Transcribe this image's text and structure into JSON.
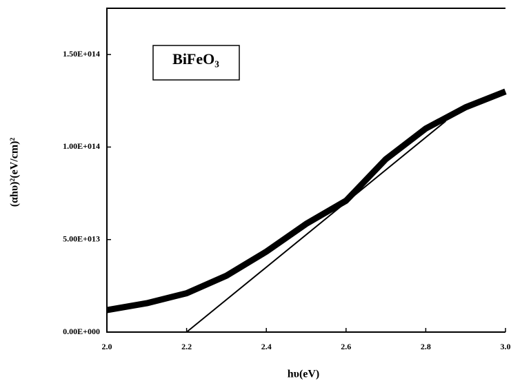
{
  "chart_data": {
    "type": "line",
    "xlabel": "hυ(eV)",
    "ylabel": "(αhυ)²(eV/cm)²",
    "annotation": "BiFeO₃",
    "x": [
      2.0,
      2.1,
      2.2,
      2.3,
      2.4,
      2.5,
      2.6,
      2.7,
      2.8,
      2.9,
      3.0
    ],
    "series": [
      {
        "color": "#000000",
        "values": [
          11900000000000.0,
          15600000000000.0,
          21000000000000.0,
          30500000000000.0,
          43500000000000.0,
          58500000000000.0,
          71000000000000.0,
          93500000000000.0,
          110000000000000.0,
          121500000000000.0,
          130000000000000.0
        ]
      }
    ],
    "fit_line": {
      "x": [
        2.2,
        2.85
      ],
      "values": [
        0,
        114000000000000.0
      ],
      "color": "#000000"
    },
    "xlim": [
      2.0,
      3.0
    ],
    "xticks": [
      {
        "value": 2.0,
        "label": "2.0"
      },
      2.2,
      2.4,
      2.6,
      2.8,
      {
        "value": 3.0,
        "label": "3.0"
      }
    ],
    "ylim": [
      0,
      175000000000000.0
    ],
    "yticks": [
      {
        "value": 0,
        "label": "0.00E+000"
      },
      {
        "value": 50000000000000.0,
        "label": "5.00E+013"
      },
      {
        "value": 100000000000000.0,
        "label": "1.00E+014"
      },
      {
        "value": 150000000000000.0,
        "label": "1.50E+014"
      }
    ]
  }
}
